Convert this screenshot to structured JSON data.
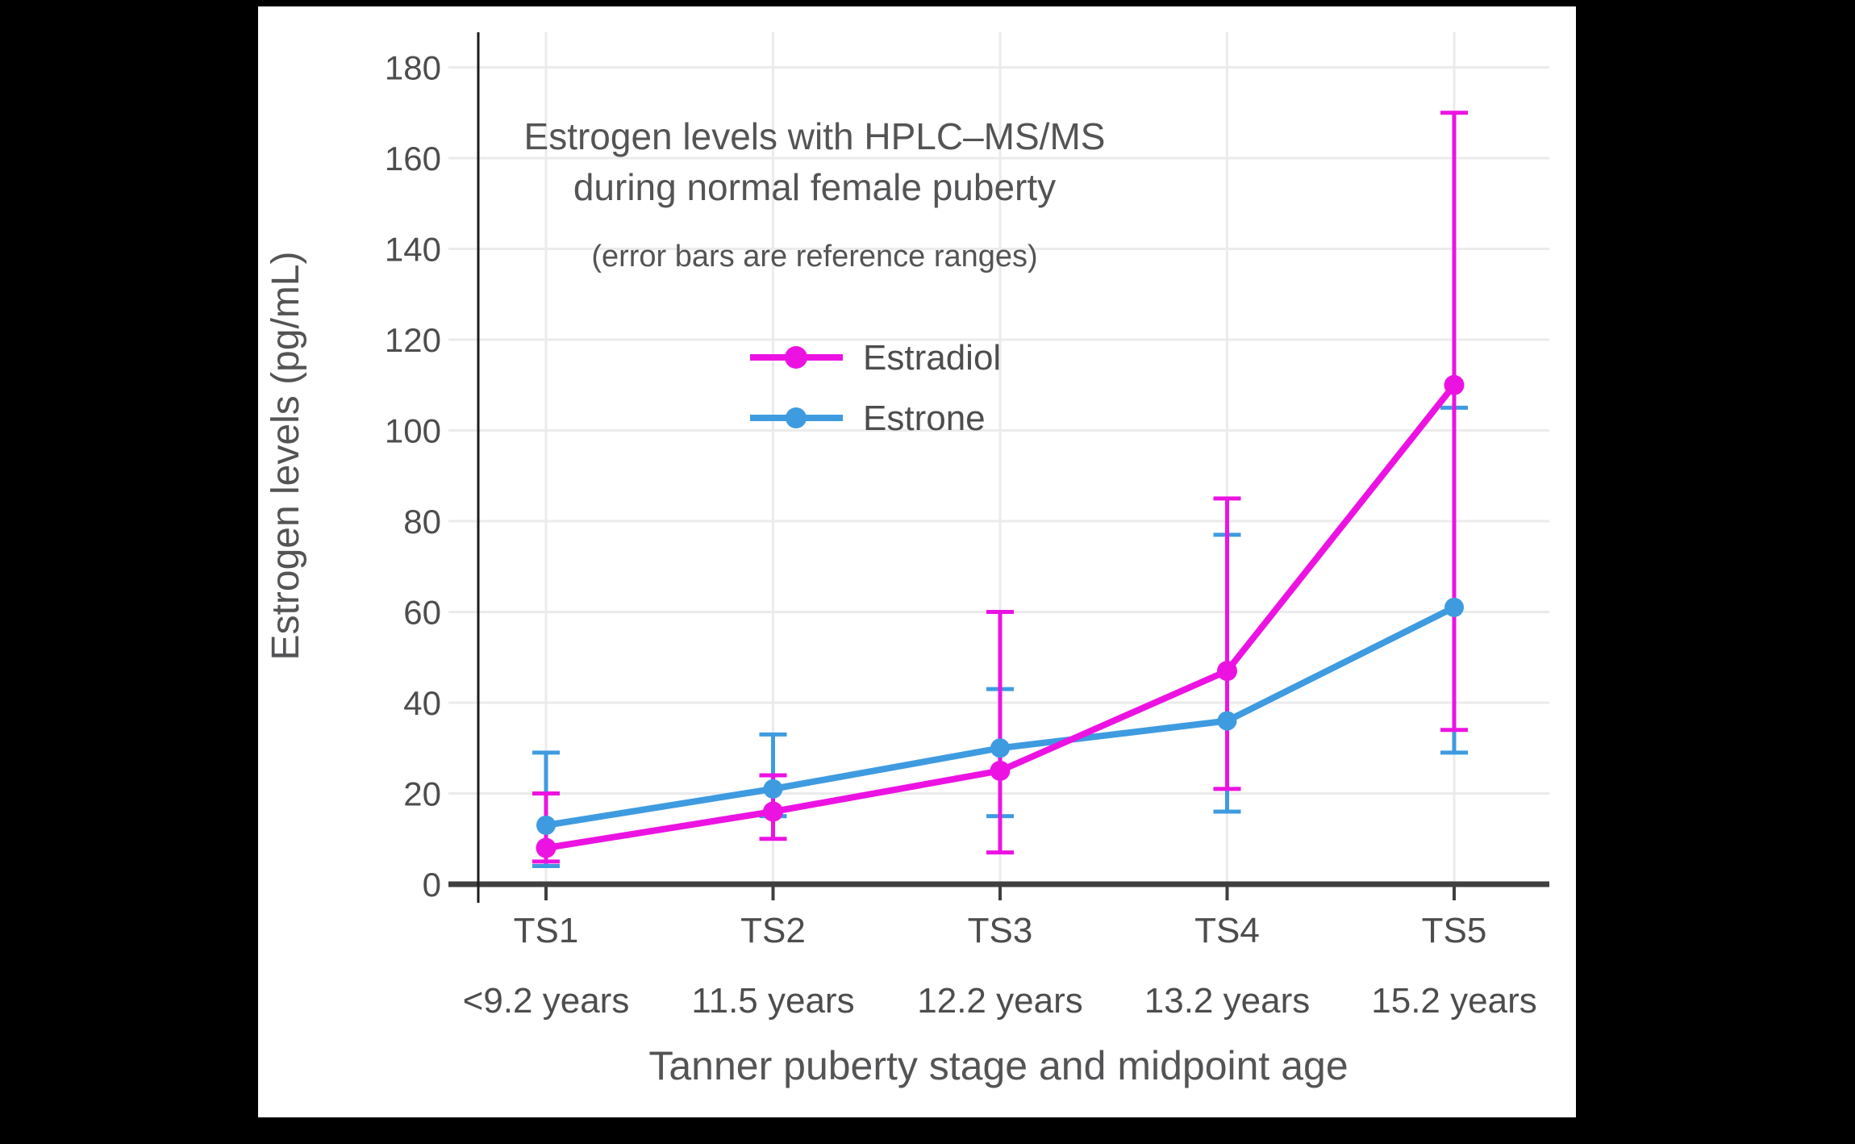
{
  "chart_data": {
    "type": "line",
    "title": "Estrogen levels with HPLC–MS/MS",
    "title_line2": "during normal female puberty",
    "subtitle": "(error bars are reference ranges)",
    "xlabel": "Tanner puberty stage and midpoint age",
    "ylabel": "Estrogen levels (pg/mL)",
    "categories": [
      "TS1",
      "TS2",
      "TS3",
      "TS4",
      "TS5"
    ],
    "category_ages": [
      "<9.2 years",
      "11.5 years",
      "12.2 years",
      "13.2 years",
      "15.2 years"
    ],
    "y_ticks": [
      0,
      20,
      40,
      60,
      80,
      100,
      120,
      140,
      160,
      180
    ],
    "ylim": [
      0,
      187
    ],
    "grid": true,
    "legend_position": "inside-upper-left",
    "series": [
      {
        "name": "Estradiol",
        "color": "#EC13E2",
        "values": [
          8,
          16,
          25,
          47,
          110
        ],
        "error_low": [
          5,
          10,
          7,
          21,
          34
        ],
        "error_high": [
          20,
          24,
          60,
          85,
          170
        ]
      },
      {
        "name": "Estrone",
        "color": "#3F9BE0",
        "values": [
          13,
          21,
          30,
          36,
          61
        ],
        "error_low": [
          4,
          15,
          15,
          16,
          29
        ],
        "error_high": [
          29,
          33,
          43,
          77,
          105
        ]
      }
    ]
  },
  "frame": {
    "background_color": "#000000",
    "canvas_color": "#ffffff",
    "grid_color": "#ebebeb",
    "x_axis_color": "#3f3f3f",
    "y_axis_color": "#1c1c1c"
  }
}
